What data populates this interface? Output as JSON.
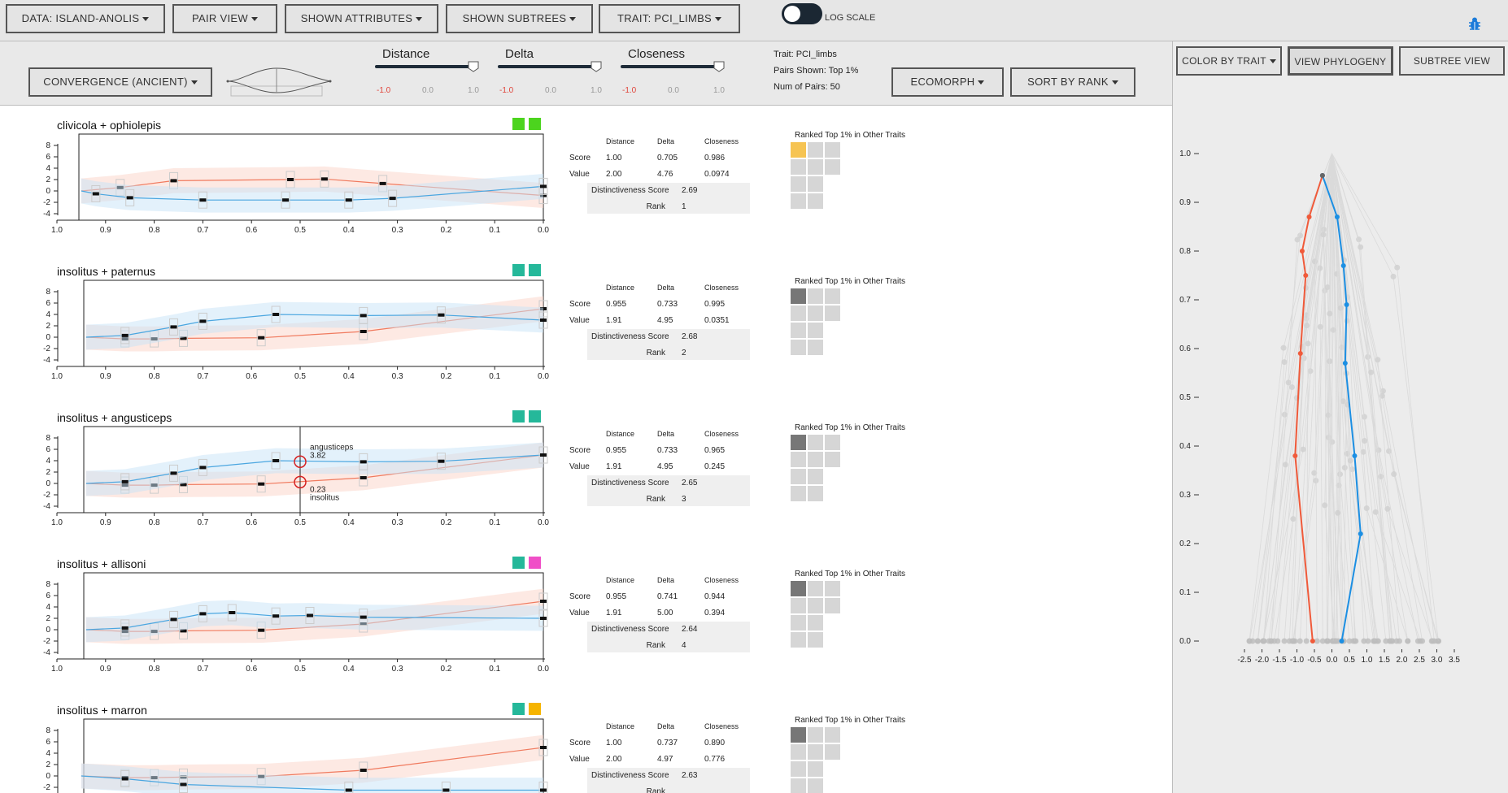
{
  "topbar": {
    "data_btn": "DATA: ISLAND-ANOLIS",
    "pair_view_btn": "PAIR VIEW",
    "shown_attributes_btn": "SHOWN ATTRIBUTES",
    "shown_subtrees_btn": "SHOWN SUBTREES",
    "trait_btn": "TRAIT: PCI_LIMBS",
    "log_scale_label": "LOG SCALE",
    "log_scale_on": true
  },
  "controls": {
    "convergence_btn": "CONVERGENCE (ANCIENT)",
    "sliders": [
      {
        "label": "Distance",
        "ticks": [
          "-1.0",
          "0.0",
          "1.0"
        ],
        "value": 1.0
      },
      {
        "label": "Delta",
        "ticks": [
          "-1.0",
          "0.0",
          "1.0"
        ],
        "value": 1.0
      },
      {
        "label": "Closeness",
        "ticks": [
          "-1.0",
          "0.0",
          "1.0"
        ],
        "value": 1.0
      }
    ],
    "info": {
      "trait": "Trait: PCI_limbs",
      "pairs_shown": "Pairs Shown: Top 1%",
      "num_pairs": "Num of Pairs: 50"
    },
    "ecomorph_btn": "ECOMORPH",
    "sort_btn": "SORT BY RANK"
  },
  "right_panel": {
    "color_btn": "COLOR BY TRAIT",
    "view_phylogeny_btn": "VIEW PHYLOGENY",
    "subtree_view_btn": "SUBTREE VIEW",
    "y_ticks": [
      "1.0",
      "0.9",
      "0.8",
      "0.7",
      "0.6",
      "0.5",
      "0.4",
      "0.3",
      "0.2",
      "0.1",
      "0.0"
    ],
    "x_ticks": [
      "-2.5",
      "-2.0",
      "-1.5",
      "-1.0",
      "-0.5",
      "0.0",
      "0.5",
      "1.0",
      "1.5",
      "2.0",
      "2.5",
      "3.0",
      "3.5"
    ]
  },
  "pair_common": {
    "x_ticks": [
      "1.0",
      "0.9",
      "0.8",
      "0.7",
      "0.6",
      "0.5",
      "0.4",
      "0.3",
      "0.2",
      "0.1",
      "0.0"
    ],
    "y_ticks": [
      "8",
      "6",
      "4",
      "2",
      "0",
      "-2",
      "-4"
    ],
    "col_headers": [
      "Distance",
      "Delta",
      "Closeness"
    ],
    "row_score": "Score",
    "row_value": "Value",
    "distinctiveness_label": "Distinctiveness Score",
    "rank_label": "Rank",
    "ranked_title": "Ranked Top 1% in Other Traits"
  },
  "pairs": [
    {
      "title": "clivicola + ophiolepis",
      "colors": [
        "#4cd41e",
        "#4cd41e"
      ],
      "score": [
        "1.00",
        "0.705",
        "0.986"
      ],
      "value": [
        "2.00",
        "4.76",
        "0.0974"
      ],
      "distinctiveness": "2.69",
      "rank": "1",
      "highlight_color": "#f6c453",
      "orange": [
        [
          0.95,
          0.0
        ],
        [
          0.87,
          0.6
        ],
        [
          0.76,
          1.8
        ],
        [
          0.52,
          2.0
        ],
        [
          0.45,
          2.1
        ],
        [
          0.33,
          1.3
        ],
        [
          0.0,
          -0.8
        ]
      ],
      "blue": [
        [
          0.95,
          0.0
        ],
        [
          0.92,
          -0.5
        ],
        [
          0.85,
          -1.2
        ],
        [
          0.7,
          -1.6
        ],
        [
          0.53,
          -1.6
        ],
        [
          0.4,
          -1.6
        ],
        [
          0.31,
          -1.3
        ],
        [
          0.0,
          0.8
        ]
      ]
    },
    {
      "title": "insolitus + paternus",
      "colors": [
        "#25b89a",
        "#25b89a"
      ],
      "score": [
        "0.955",
        "0.733",
        "0.995"
      ],
      "value": [
        "1.91",
        "4.95",
        "0.0351"
      ],
      "distinctiveness": "2.68",
      "rank": "2",
      "highlight_color": "#777777",
      "orange": [
        [
          0.94,
          0.0
        ],
        [
          0.86,
          -0.3
        ],
        [
          0.8,
          -0.3
        ],
        [
          0.74,
          -0.2
        ],
        [
          0.58,
          -0.1
        ],
        [
          0.37,
          1.0
        ],
        [
          0.0,
          5.0
        ]
      ],
      "blue": [
        [
          0.94,
          0.0
        ],
        [
          0.86,
          0.3
        ],
        [
          0.76,
          1.8
        ],
        [
          0.7,
          2.8
        ],
        [
          0.55,
          4.0
        ],
        [
          0.37,
          3.8
        ],
        [
          0.21,
          3.9
        ],
        [
          0.0,
          3.0
        ]
      ]
    },
    {
      "title": "insolitus + angusticeps",
      "colors": [
        "#25b89a",
        "#25b89a"
      ],
      "score": [
        "0.955",
        "0.733",
        "0.965"
      ],
      "value": [
        "1.91",
        "4.95",
        "0.245"
      ],
      "distinctiveness": "2.65",
      "rank": "3",
      "highlight_color": "#777777",
      "tooltip": {
        "top_value": "3.82",
        "top_name": "angusticeps",
        "bottom_value": "0.23",
        "bottom_name": "insolitus",
        "x": 0.5
      },
      "orange": [
        [
          0.94,
          0.0
        ],
        [
          0.86,
          -0.3
        ],
        [
          0.8,
          -0.3
        ],
        [
          0.74,
          -0.2
        ],
        [
          0.58,
          -0.1
        ],
        [
          0.37,
          1.0
        ],
        [
          0.0,
          5.0
        ]
      ],
      "blue": [
        [
          0.94,
          0.0
        ],
        [
          0.86,
          0.3
        ],
        [
          0.76,
          1.8
        ],
        [
          0.7,
          2.8
        ],
        [
          0.55,
          4.0
        ],
        [
          0.37,
          3.8
        ],
        [
          0.21,
          3.9
        ],
        [
          0.0,
          5.0
        ]
      ]
    },
    {
      "title": "insolitus + allisoni",
      "colors": [
        "#25b89a",
        "#f04fc7"
      ],
      "score": [
        "0.955",
        "0.741",
        "0.944"
      ],
      "value": [
        "1.91",
        "5.00",
        "0.394"
      ],
      "distinctiveness": "2.64",
      "rank": "4",
      "highlight_color": "#777777",
      "orange": [
        [
          0.94,
          0.0
        ],
        [
          0.86,
          -0.3
        ],
        [
          0.8,
          -0.3
        ],
        [
          0.74,
          -0.2
        ],
        [
          0.58,
          -0.1
        ],
        [
          0.37,
          1.0
        ],
        [
          0.0,
          5.0
        ]
      ],
      "blue": [
        [
          0.94,
          0.0
        ],
        [
          0.86,
          0.3
        ],
        [
          0.76,
          1.8
        ],
        [
          0.7,
          2.8
        ],
        [
          0.64,
          3.0
        ],
        [
          0.55,
          2.4
        ],
        [
          0.48,
          2.5
        ],
        [
          0.37,
          2.2
        ],
        [
          0.0,
          2.0
        ]
      ]
    },
    {
      "title": "insolitus + marron",
      "colors": [
        "#25b89a",
        "#f6b400"
      ],
      "score": [
        "1.00",
        "0.737",
        "0.890"
      ],
      "value": [
        "2.00",
        "4.97",
        "0.776"
      ],
      "distinctiveness": "2.63",
      "rank": "",
      "highlight_color": "#777777",
      "orange": [
        [
          0.95,
          0.0
        ],
        [
          0.86,
          -0.3
        ],
        [
          0.8,
          -0.3
        ],
        [
          0.74,
          -0.2
        ],
        [
          0.58,
          -0.1
        ],
        [
          0.37,
          1.0
        ],
        [
          0.0,
          5.0
        ]
      ],
      "blue": [
        [
          0.95,
          0.0
        ],
        [
          0.86,
          -0.5
        ],
        [
          0.74,
          -1.5
        ],
        [
          0.4,
          -2.5
        ],
        [
          0.2,
          -2.5
        ],
        [
          0.0,
          -2.5
        ]
      ]
    }
  ]
}
